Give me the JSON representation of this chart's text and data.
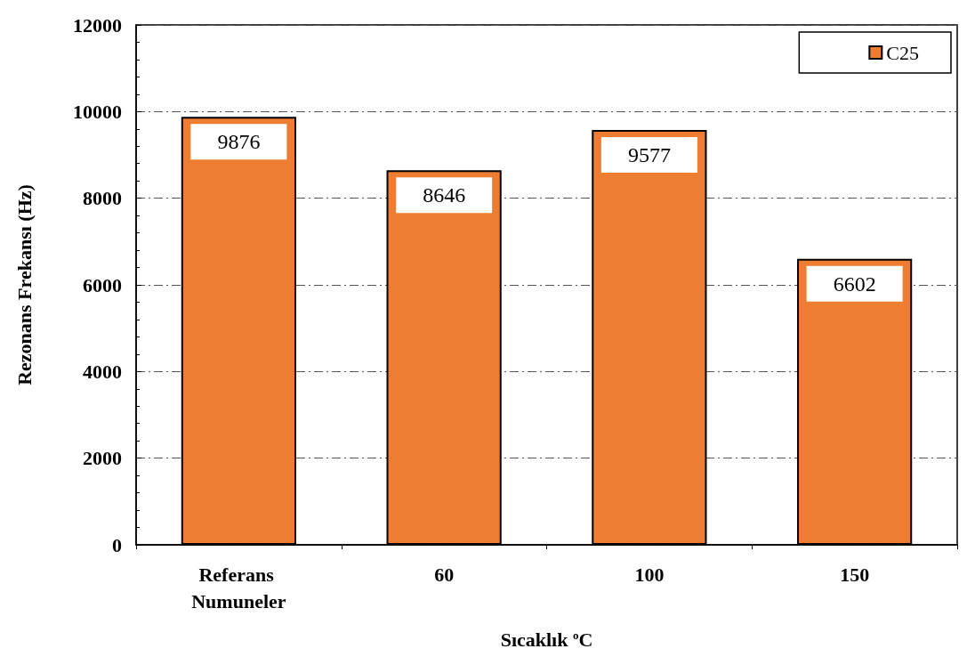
{
  "chart_data": {
    "type": "bar",
    "xlabel": "Sıcaklık $^{o}$C",
    "ylabel": "Rezonans Frekansı (Hz)",
    "categories": [
      "Referans Numuneler",
      "60",
      "100",
      "150"
    ],
    "series": [
      {
        "name": "C25",
        "color": "#ed7d31",
        "values": [
          9876,
          8646,
          9577,
          6602
        ]
      }
    ],
    "ylim": [
      0,
      12000
    ],
    "yticks": [
      0,
      2000,
      4000,
      6000,
      8000,
      10000,
      12000
    ],
    "grid": "y",
    "legend": "top right",
    "data_labels": true
  }
}
